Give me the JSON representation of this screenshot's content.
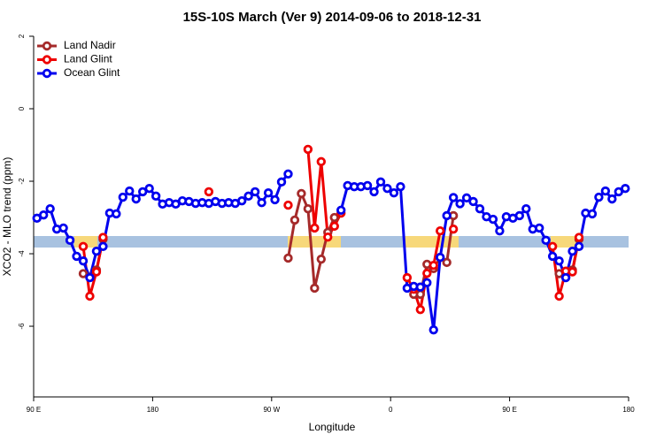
{
  "chart_data": {
    "type": "line",
    "title": "15S-10S March (Ver 9)   2014-09-06 to 2018-12-31",
    "xlabel": "Longitude",
    "ylabel": "XCO2 - MLO trend (ppm)",
    "xlim": [
      90,
      540
    ],
    "xticks": [
      {
        "value": 90,
        "label": "90 E"
      },
      180,
      {
        "value": 270,
        "label": "90 W"
      },
      {
        "value": 360,
        "label": "0"
      },
      {
        "value": 450,
        "label": "90 E"
      },
      {
        "value": 540,
        "label": "180"
      }
    ],
    "ylim": [
      -7.95,
      2.0
    ],
    "yticks": [
      -6,
      -4,
      -2,
      0,
      2
    ],
    "legend": "top-left",
    "x": [
      92.5,
      97.5,
      102.5,
      107.5,
      112.5,
      117.5,
      122.5,
      127.5,
      132.5,
      137.5,
      142.5,
      147.5,
      152.5,
      157.5,
      162.5,
      167.5,
      172.5,
      177.5,
      182.5,
      187.5,
      192.5,
      197.5,
      202.5,
      207.5,
      212.5,
      217.5,
      222.5,
      227.5,
      232.5,
      237.5,
      242.5,
      247.5,
      252.5,
      257.5,
      262.5,
      267.5,
      272.5,
      277.5,
      282.5,
      287.5,
      292.5,
      297.5,
      302.5,
      307.5,
      312.5,
      317.5,
      322.5,
      327.5,
      332.5,
      337.5,
      342.5,
      347.5,
      352.5,
      357.5,
      362.5,
      367.5,
      372.5,
      377.5,
      382.5,
      387.5,
      392.5,
      397.5,
      402.5,
      407.5,
      412.5,
      417.5,
      422.5,
      427.5,
      432.5,
      437.5,
      442.5,
      447.5,
      452.5,
      457.5,
      462.5,
      467.5,
      472.5,
      477.5,
      482.5,
      487.5,
      492.5,
      497.5,
      502.5,
      507.5,
      512.5,
      517.5,
      522.5,
      527.5,
      532.5,
      537.5
    ],
    "series": [
      {
        "name": "Land Nadir",
        "color": "#a52a2a",
        "values": [
          null,
          null,
          null,
          null,
          null,
          null,
          null,
          -4.55,
          -4.65,
          -4.45,
          -3.6,
          null,
          null,
          null,
          null,
          null,
          null,
          null,
          null,
          null,
          null,
          null,
          null,
          null,
          null,
          null,
          null,
          null,
          null,
          null,
          null,
          null,
          null,
          null,
          null,
          null,
          null,
          null,
          -4.12,
          -3.07,
          -2.34,
          -2.76,
          -4.95,
          -4.15,
          -3.41,
          -3.0,
          null,
          null,
          null,
          null,
          null,
          null,
          null,
          null,
          null,
          null,
          null,
          -5.12,
          -5.12,
          -4.29,
          -4.41,
          -4.1,
          -4.24,
          -2.95,
          null,
          null,
          null,
          null,
          null,
          null,
          null,
          null,
          null,
          null,
          null,
          null,
          null,
          null,
          null,
          -4.55,
          -4.65,
          -4.45,
          -3.6,
          null,
          null,
          null,
          null,
          null,
          null,
          null
        ]
      },
      {
        "name": "Land Glint",
        "color": "#ee0000",
        "values": [
          null,
          null,
          null,
          null,
          null,
          null,
          null,
          -3.8,
          -5.17,
          -4.5,
          -3.55,
          null,
          null,
          null,
          null,
          null,
          null,
          null,
          null,
          null,
          null,
          null,
          null,
          null,
          null,
          null,
          -2.29,
          null,
          null,
          null,
          null,
          null,
          null,
          null,
          null,
          null,
          null,
          null,
          -2.66,
          null,
          null,
          -1.12,
          -3.29,
          -1.46,
          -3.54,
          -3.24,
          -2.88,
          null,
          null,
          null,
          null,
          null,
          null,
          null,
          null,
          null,
          -4.66,
          -4.98,
          -5.54,
          -4.54,
          -4.32,
          -3.37,
          null,
          -3.32,
          null,
          null,
          null,
          null,
          null,
          null,
          null,
          null,
          null,
          null,
          null,
          null,
          null,
          null,
          -3.8,
          -5.17,
          -4.48,
          -4.5,
          -3.55,
          null,
          null,
          null,
          null,
          null,
          null,
          null
        ]
      },
      {
        "name": "Ocean Glint",
        "color": "#0000ee",
        "values": [
          -3.02,
          -2.93,
          -2.76,
          -3.32,
          -3.29,
          -3.63,
          -4.07,
          -4.2,
          -4.66,
          -3.93,
          -3.8,
          -2.88,
          -2.9,
          -2.44,
          -2.27,
          -2.49,
          -2.29,
          -2.2,
          -2.41,
          -2.63,
          -2.59,
          -2.63,
          -2.54,
          -2.56,
          -2.61,
          -2.59,
          -2.61,
          -2.56,
          -2.61,
          -2.59,
          -2.61,
          -2.54,
          -2.41,
          -2.29,
          -2.59,
          -2.32,
          -2.51,
          -2.02,
          -1.8,
          null,
          null,
          null,
          null,
          null,
          null,
          null,
          -2.8,
          -2.12,
          -2.15,
          -2.15,
          -2.12,
          -2.29,
          -2.02,
          -2.2,
          -2.32,
          -2.15,
          -4.95,
          -4.9,
          -4.92,
          -4.8,
          -6.1,
          -4.1,
          -2.95,
          -2.45,
          -2.62,
          -2.46,
          -2.56,
          -2.76,
          -2.98,
          -3.05,
          -3.37,
          -2.98,
          -3.02,
          -2.95,
          -2.76,
          -3.32,
          -3.29,
          -3.63,
          -4.07,
          -4.2,
          -4.66,
          -3.93,
          -3.8,
          -2.88,
          -2.9,
          -2.44,
          -2.27,
          -2.49,
          -2.29,
          -2.2
        ]
      }
    ]
  }
}
